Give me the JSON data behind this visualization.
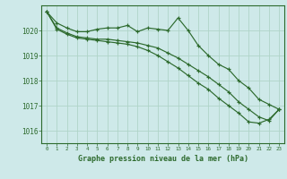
{
  "title": "Graphe pression niveau de la mer (hPa)",
  "bg_color": "#cee9e9",
  "grid_color": "#b0d4c8",
  "line_color": "#2d6a2d",
  "marker_color": "#2d6a2d",
  "xlim": [
    -0.5,
    23.5
  ],
  "ylim": [
    1015.5,
    1021.0
  ],
  "yticks": [
    1016,
    1017,
    1018,
    1019,
    1020
  ],
  "xticks": [
    0,
    1,
    2,
    3,
    4,
    5,
    6,
    7,
    8,
    9,
    10,
    11,
    12,
    13,
    14,
    15,
    16,
    17,
    18,
    19,
    20,
    21,
    22,
    23
  ],
  "series": [
    {
      "x": [
        0,
        1,
        2,
        3,
        4,
        5,
        6,
        7,
        8,
        9,
        10,
        11,
        12,
        13,
        14,
        15,
        16,
        17,
        18,
        19,
        20,
        21,
        22,
        23
      ],
      "y": [
        1020.75,
        1020.3,
        1020.1,
        1019.95,
        1019.95,
        1020.05,
        1020.1,
        1020.1,
        1020.2,
        1019.95,
        1020.1,
        1020.05,
        1020.0,
        1020.5,
        1020.0,
        1019.4,
        1019.0,
        1018.65,
        1018.45,
        1018.0,
        1017.7,
        1017.25,
        1017.05,
        1016.85
      ]
    },
    {
      "x": [
        0,
        1,
        2,
        3,
        4,
        5,
        6,
        7,
        8,
        9,
        10,
        11,
        12,
        13,
        14,
        15,
        16,
        17,
        18,
        19,
        20,
        21,
        22,
        23
      ],
      "y": [
        1020.75,
        1020.1,
        1019.9,
        1019.75,
        1019.7,
        1019.65,
        1019.65,
        1019.6,
        1019.55,
        1019.5,
        1019.4,
        1019.3,
        1019.1,
        1018.9,
        1018.65,
        1018.4,
        1018.15,
        1017.85,
        1017.55,
        1017.15,
        1016.85,
        1016.55,
        1016.4,
        1016.85
      ]
    },
    {
      "x": [
        0,
        1,
        2,
        3,
        4,
        5,
        6,
        7,
        8,
        9,
        10,
        11,
        12,
        13,
        14,
        15,
        16,
        17,
        18,
        19,
        20,
        21,
        22,
        23
      ],
      "y": [
        1020.75,
        1020.05,
        1019.85,
        1019.7,
        1019.65,
        1019.6,
        1019.55,
        1019.5,
        1019.45,
        1019.35,
        1019.2,
        1019.0,
        1018.75,
        1018.5,
        1018.2,
        1017.9,
        1017.65,
        1017.3,
        1017.0,
        1016.7,
        1016.35,
        1016.3,
        1016.45,
        1016.85
      ]
    }
  ]
}
